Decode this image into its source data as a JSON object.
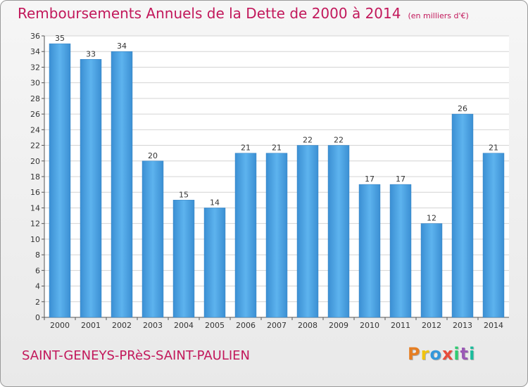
{
  "header": {
    "title": "Remboursements Annuels de la Dette de 2000 à 2014",
    "unit": "(en milliers d'€)"
  },
  "footer": {
    "commune": "SAINT-GENEYS-PRèS-SAINT-PAULIEN",
    "logo_letters": [
      "P",
      "r",
      "o",
      "x",
      "i",
      "t",
      "i"
    ]
  },
  "colors": {
    "bar": "#4a9fdf",
    "title": "#c2185b",
    "logo": [
      "#e67e22",
      "#f1c40f",
      "#3498db",
      "#e74c3c",
      "#2ecc71",
      "#9b59b6",
      "#1abc9c"
    ]
  },
  "chart_data": {
    "type": "bar",
    "categories": [
      "2000",
      "2001",
      "2002",
      "2003",
      "2004",
      "2005",
      "2006",
      "2007",
      "2008",
      "2009",
      "2010",
      "2011",
      "2012",
      "2013",
      "2014"
    ],
    "values": [
      35,
      33,
      34,
      20,
      15,
      14,
      21,
      21,
      22,
      22,
      17,
      17,
      12,
      26,
      21
    ],
    "title": "Remboursements Annuels de la Dette de 2000 à 2014",
    "ylim": [
      0,
      36
    ],
    "y_ticks": [
      0,
      2,
      4,
      6,
      8,
      10,
      12,
      14,
      16,
      18,
      20,
      22,
      24,
      26,
      28,
      30,
      32,
      34,
      36
    ],
    "grid": true
  }
}
